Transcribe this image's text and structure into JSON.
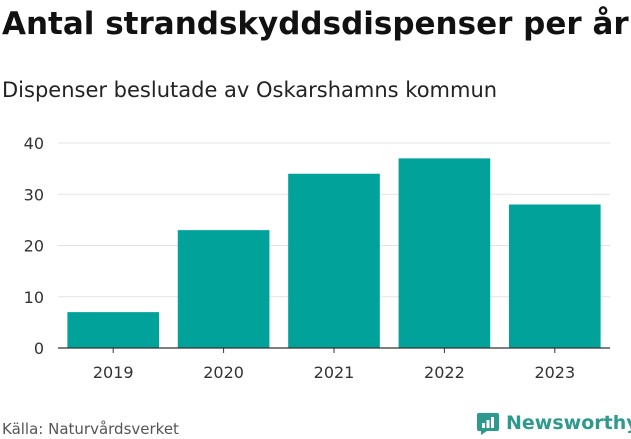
{
  "title": "Antal strandskyddsdispenser per år",
  "subtitle": "Dispenser beslutade av Oskarshamns kommun",
  "source": "Källa: Naturvårdsverket",
  "brand": "Newsworthy",
  "icons": {
    "logo": "newsworthy-logo-icon"
  },
  "colors": {
    "bar": "#00a29a",
    "grid": "#e3e3e3",
    "axis": "#333333",
    "brand": "#2e9a8d"
  },
  "chart_data": {
    "type": "bar",
    "categories": [
      "2019",
      "2020",
      "2021",
      "2022",
      "2023"
    ],
    "values": [
      7,
      23,
      34,
      37,
      28
    ],
    "ylim": [
      0,
      40
    ],
    "yticks": [
      0,
      10,
      20,
      30,
      40
    ],
    "grid": true,
    "legend": "none"
  }
}
